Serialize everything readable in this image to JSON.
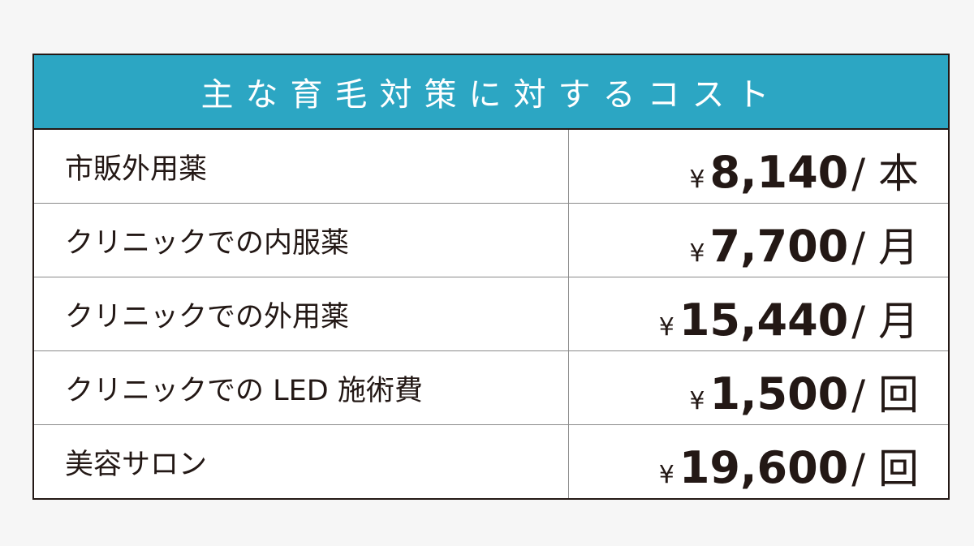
{
  "table": {
    "title": "主な育毛対策に対するコスト",
    "rows": [
      {
        "label": "市販外用薬",
        "currency": "¥",
        "amount": "8,140",
        "unit": "/ 本"
      },
      {
        "label": "クリニックでの内服薬",
        "currency": "¥",
        "amount": "7,700",
        "unit": "/ 月"
      },
      {
        "label": "クリニックでの外用薬",
        "currency": "¥",
        "amount": "15,440",
        "unit": "/ 月"
      },
      {
        "label": "クリニックでの LED 施術費",
        "currency": "¥",
        "amount": "1,500",
        "unit": "/ 回"
      },
      {
        "label": "美容サロン",
        "currency": "¥",
        "amount": "19,600",
        "unit": "/ 回"
      }
    ]
  }
}
